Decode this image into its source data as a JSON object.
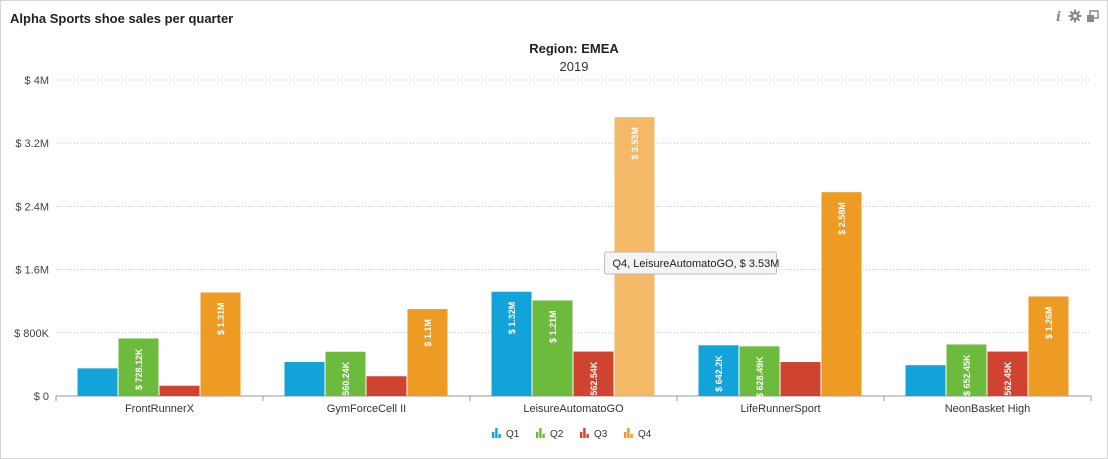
{
  "panel": {
    "title": "Alpha Sports shoe sales per quarter",
    "icons": [
      "info-icon",
      "gear-icon",
      "restore-window-icon"
    ]
  },
  "chart_data": {
    "type": "bar",
    "title": "Region: EMEA",
    "subtitle": "2019",
    "xlabel": "",
    "ylabel": "",
    "ylim": [
      0,
      4000000
    ],
    "y_ticks": [
      {
        "value": 0,
        "label": "$ 0"
      },
      {
        "value": 800000,
        "label": "$ 800K"
      },
      {
        "value": 1600000,
        "label": "$ 1.6M"
      },
      {
        "value": 2400000,
        "label": "$ 2.4M"
      },
      {
        "value": 3200000,
        "label": "$ 3.2M"
      },
      {
        "value": 4000000,
        "label": "$ 4M"
      }
    ],
    "grid": true,
    "legend_position": "bottom",
    "categories": [
      "FrontRunnerX",
      "GymForceCell II",
      "LeisureAutomatoGO",
      "LifeRunnerSport",
      "NeonBasket High"
    ],
    "series": [
      {
        "name": "Q1",
        "color": "#12a3d8",
        "values": [
          350000,
          430000,
          1320000,
          642200,
          390000
        ],
        "labels": [
          null,
          null,
          "$ 1.32M",
          "$ 642.2K",
          null
        ]
      },
      {
        "name": "Q2",
        "color": "#6cbb3c",
        "values": [
          728120,
          560240,
          1210000,
          628490,
          652450
        ],
        "labels": [
          "$ 728.12K",
          "$ 560.24K",
          "$ 1.21M",
          "$ 628.49K",
          "$ 652.45K"
        ]
      },
      {
        "name": "Q3",
        "color": "#cf4330",
        "values": [
          130000,
          250000,
          562540,
          430000,
          562450
        ],
        "labels": [
          null,
          null,
          "$ 562.54K",
          null,
          "$ 562.45K"
        ]
      },
      {
        "name": "Q4",
        "color": "#ee9b23",
        "values": [
          1310000,
          1100000,
          3530000,
          2580000,
          1260000
        ],
        "labels": [
          "$ 1.31M",
          "$ 1.1M",
          "$ 3.53M",
          "$ 2.58M",
          "$ 1.26M"
        ]
      }
    ],
    "highlight": {
      "series": 3,
      "category": 2,
      "color": "#f4b966"
    },
    "tooltip": "Q4, LeisureAutomatoGO, $ 3.53M"
  }
}
